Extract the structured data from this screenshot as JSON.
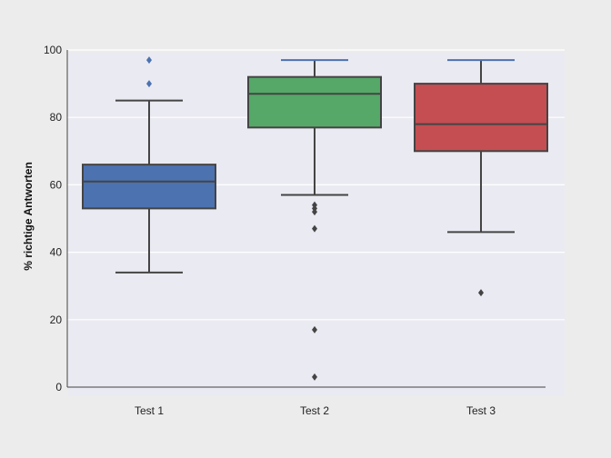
{
  "chart_data": {
    "type": "box",
    "title": "",
    "xlabel": "",
    "ylabel": "% richtige Antworten",
    "ylim": [
      0,
      100
    ],
    "yticks": [
      0,
      20,
      40,
      60,
      80,
      100
    ],
    "grid": true,
    "categories": [
      "Test 1",
      "Test 2",
      "Test 3"
    ],
    "boxes": [
      {
        "name": "Test 1",
        "color": "#4c72b0",
        "whisker_low": 34,
        "q1": 53,
        "median": 61,
        "q3": 66,
        "whisker_high": 85,
        "outliers": [
          90,
          97
        ],
        "outlier_color": "#4c72b0"
      },
      {
        "name": "Test 2",
        "color": "#55a868",
        "whisker_low": 57,
        "q1": 77,
        "median": 87,
        "q3": 92,
        "whisker_high": 97,
        "outliers": [
          54,
          53,
          52,
          47,
          17,
          3
        ],
        "outlier_color": "#444444"
      },
      {
        "name": "Test 3",
        "color": "#c44e52",
        "whisker_low": 46,
        "q1": 70,
        "median": 78,
        "q3": 90,
        "whisker_high": 97,
        "outliers": [
          28
        ],
        "outlier_color": "#444444"
      }
    ]
  }
}
